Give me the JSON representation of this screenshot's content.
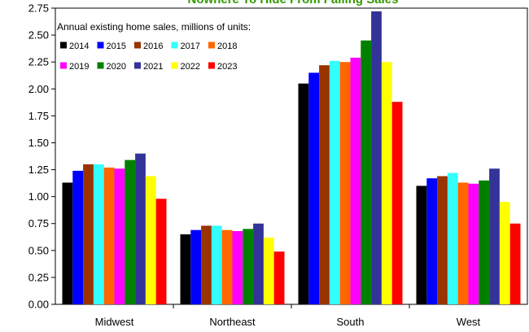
{
  "chart_data": {
    "type": "bar",
    "title": "Nowhere To Hide From Falling Sales",
    "subtitle": "Annual existing home sales, millions of units:",
    "categories": [
      "Midwest",
      "Northeast",
      "South",
      "West"
    ],
    "ylim": [
      0,
      2.75
    ],
    "yticks": [
      "0.00",
      "0.25",
      "0.50",
      "0.75",
      "1.00",
      "1.25",
      "1.50",
      "1.75",
      "2.00",
      "2.25",
      "2.50",
      "2.75"
    ],
    "grid": false,
    "legend_position": "top-left",
    "series": [
      {
        "name": "2014",
        "color": "#000000",
        "values": [
          1.13,
          0.65,
          2.05,
          1.1
        ]
      },
      {
        "name": "2015",
        "color": "#0000ff",
        "values": [
          1.24,
          0.69,
          2.15,
          1.17
        ]
      },
      {
        "name": "2016",
        "color": "#993300",
        "values": [
          1.3,
          0.73,
          2.22,
          1.19
        ]
      },
      {
        "name": "2017",
        "color": "#33ffff",
        "values": [
          1.3,
          0.73,
          2.26,
          1.22
        ]
      },
      {
        "name": "2018",
        "color": "#ff6600",
        "values": [
          1.27,
          0.69,
          2.25,
          1.13
        ]
      },
      {
        "name": "2019",
        "color": "#ff00ff",
        "values": [
          1.26,
          0.68,
          2.29,
          1.12
        ]
      },
      {
        "name": "2020",
        "color": "#008000",
        "values": [
          1.34,
          0.7,
          2.45,
          1.15
        ]
      },
      {
        "name": "2021",
        "color": "#333399",
        "values": [
          1.4,
          0.75,
          2.72,
          1.26
        ]
      },
      {
        "name": "2022",
        "color": "#ffff00",
        "values": [
          1.19,
          0.62,
          2.25,
          0.95
        ]
      },
      {
        "name": "2023",
        "color": "#ff0000",
        "values": [
          0.98,
          0.49,
          1.88,
          0.75
        ]
      }
    ],
    "title_color": "#339900"
  }
}
